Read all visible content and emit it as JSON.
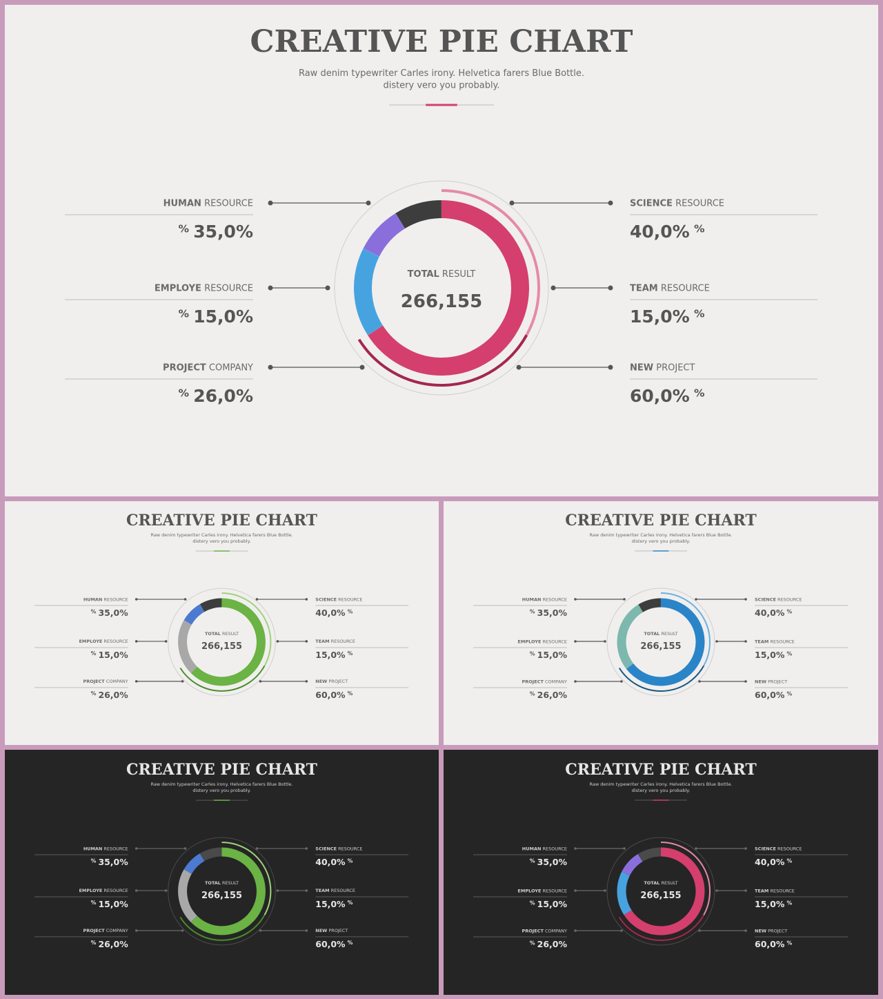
{
  "slide": {
    "title": "CREATIVE PIE CHART",
    "subtitle_line1": "Raw denim typewriter Carles irony. Helvetica farers Blue Bottle.",
    "subtitle_line2": "distery vero you probably.",
    "center_label_bold": "TOTAL",
    "center_label_rest": "RESULT",
    "center_value": "266,155"
  },
  "left_items": [
    {
      "bold": "HUMAN",
      "rest": "RESOURCE",
      "value": "35,0%",
      "unit": "%"
    },
    {
      "bold": "EMPLOYE",
      "rest": "RESOURCE",
      "value": "15,0%",
      "unit": "%"
    },
    {
      "bold": "PROJECT",
      "rest": "COMPANY",
      "value": "26,0%",
      "unit": "%"
    }
  ],
  "right_items": [
    {
      "bold": "SCIENCE",
      "rest": "RESOURCE",
      "value": "40,0%",
      "unit": "%"
    },
    {
      "bold": "TEAM",
      "rest": "RESOURCE",
      "value": "15,0%",
      "unit": "%"
    },
    {
      "bold": "NEW",
      "rest": "PROJECT",
      "value": "60,0%",
      "unit": "%"
    }
  ],
  "chart_data": [
    {
      "type": "pie",
      "variant": "light, pink",
      "title": "CREATIVE PIE CHART",
      "series": [
        {
          "values": [
            60,
            15,
            8,
            8
          ]
        }
      ],
      "colors": [
        "#d43f6e",
        "#47a3e0",
        "#8a6fdc",
        "#3d3d3d"
      ],
      "outer_ring_fraction": 0.55,
      "outer_ring_colors": [
        "#e58aa8",
        "#a3284f"
      ]
    },
    {
      "type": "pie",
      "variant": "light, green",
      "title": "CREATIVE PIE CHART",
      "series": [
        {
          "values": [
            60,
            20,
            8,
            8
          ]
        }
      ],
      "colors": [
        "#6ab344",
        "#a8a8a8",
        "#4c7ad0",
        "#3d3d3d"
      ],
      "outer_ring_fraction": 0.55,
      "outer_ring_colors": [
        "#9fd27c",
        "#4b8d2c"
      ]
    },
    {
      "type": "pie",
      "variant": "light, blue",
      "title": "CREATIVE PIE CHART",
      "series": [
        {
          "values": [
            60,
            25,
            0,
            8
          ]
        }
      ],
      "colors": [
        "#2a84c8",
        "#7cb8ae",
        "#7cb8ae",
        "#3d3d3d"
      ],
      "outer_ring_fraction": 0.55,
      "outer_ring_colors": [
        "#6ab0e2",
        "#17577f"
      ]
    },
    {
      "type": "pie",
      "variant": "dark, green",
      "title": "CREATIVE PIE CHART",
      "series": [
        {
          "values": [
            60,
            20,
            8,
            8
          ]
        }
      ],
      "colors": [
        "#6ab344",
        "#a8a8a8",
        "#4c7ad0",
        "#4a4a4a"
      ],
      "outer_ring_fraction": 0.55,
      "outer_ring_colors": [
        "#9fd27c",
        "#4b8d2c"
      ]
    },
    {
      "type": "pie",
      "variant": "dark, pink",
      "title": "CREATIVE PIE CHART",
      "series": [
        {
          "values": [
            60,
            15,
            8,
            8
          ]
        }
      ],
      "colors": [
        "#d43f6e",
        "#47a3e0",
        "#8a6fdc",
        "#4a4a4a"
      ],
      "outer_ring_fraction": 0.55,
      "outer_ring_colors": [
        "#e58aa8",
        "#a3284f"
      ]
    }
  ]
}
